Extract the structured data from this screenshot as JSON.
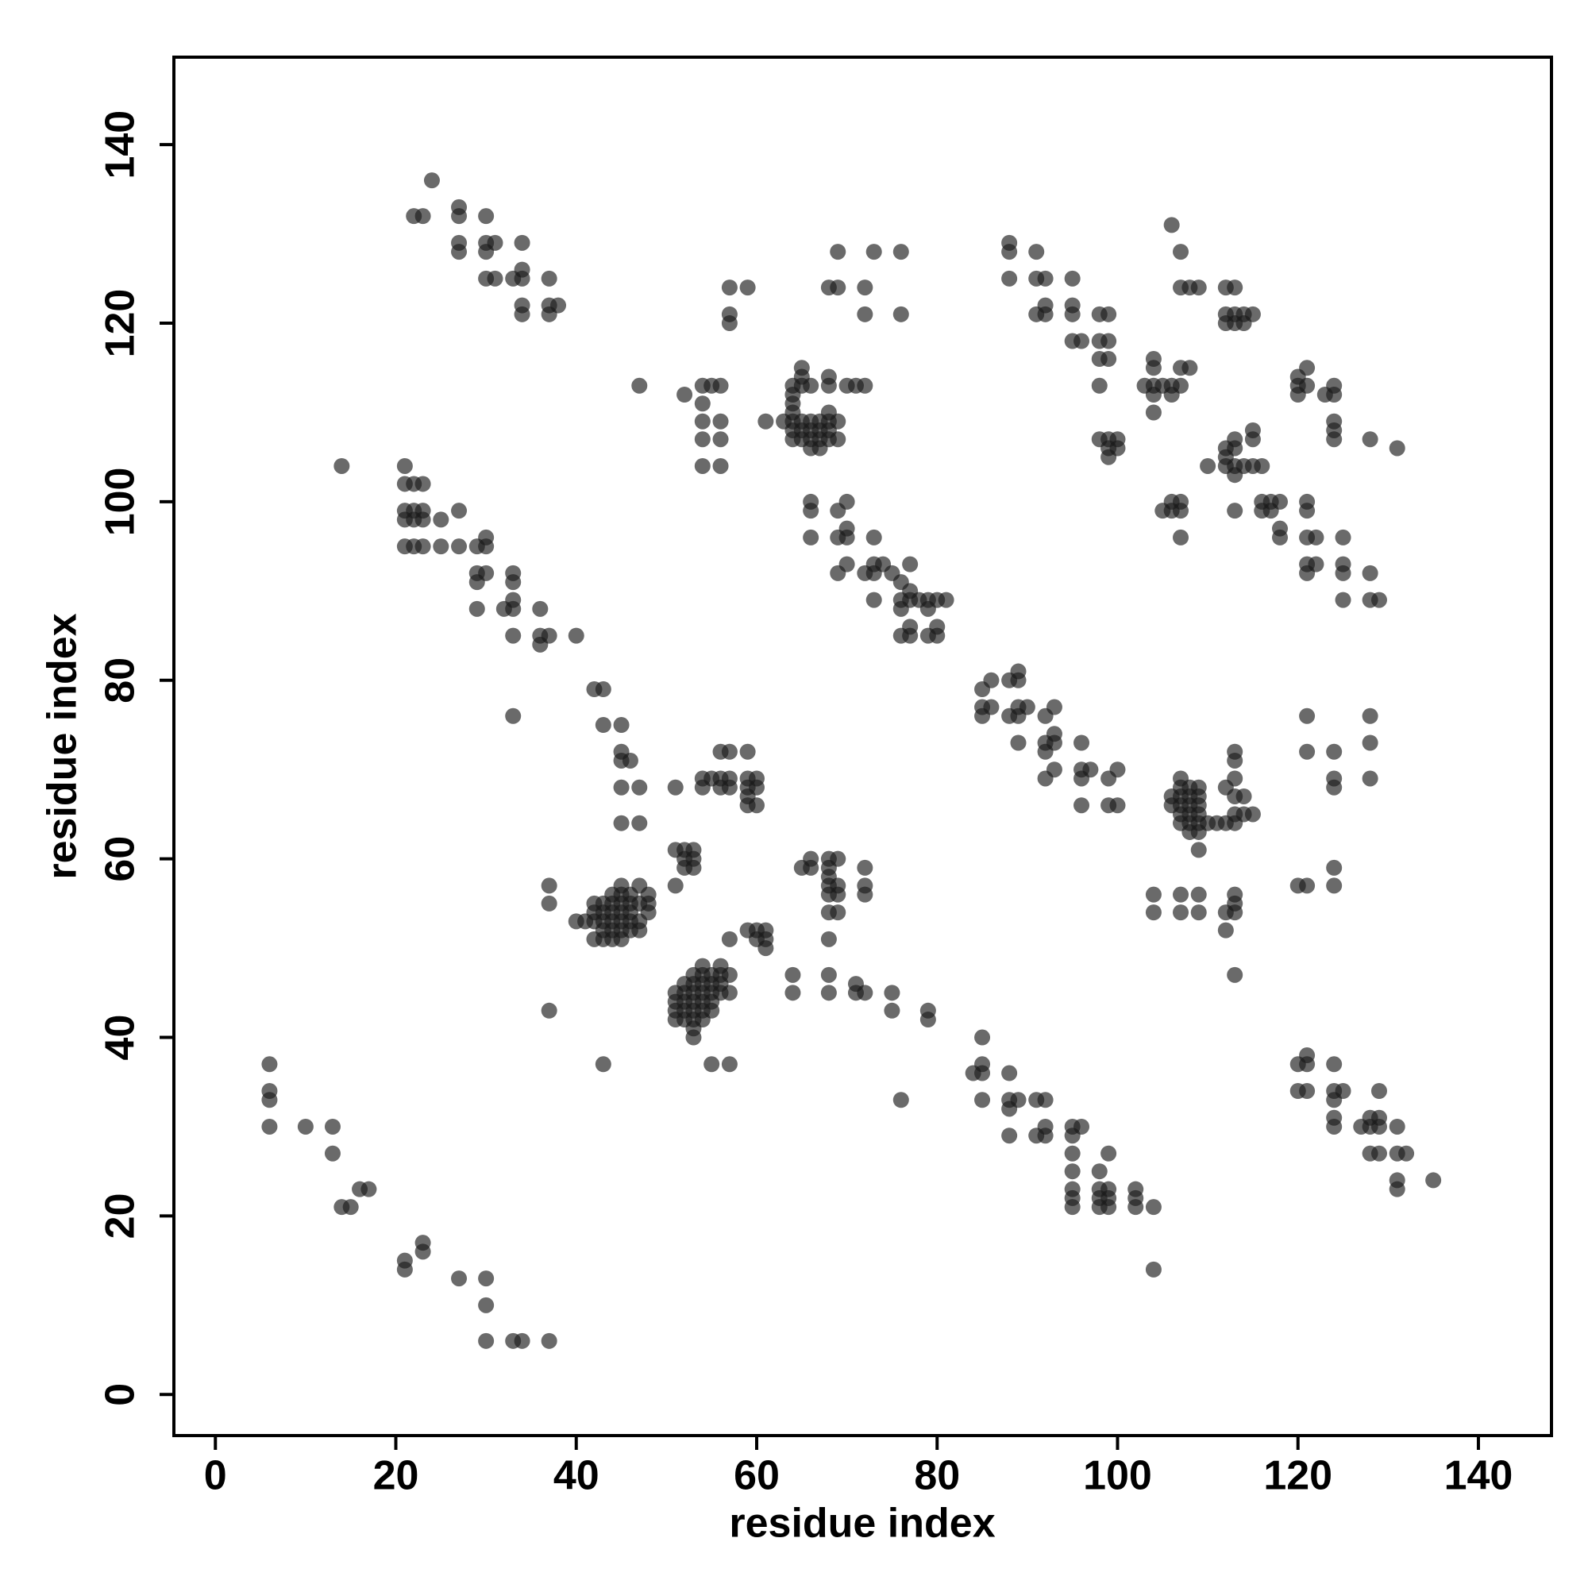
{
  "chart_data": {
    "type": "scatter",
    "xlabel": "residue index",
    "ylabel": "residue index",
    "color": "#1a1a1a",
    "xlim": [
      -4.6,
      148.1
    ],
    "ylim": [
      -4.6,
      149.8
    ],
    "xticks": [
      0,
      20,
      40,
      60,
      80,
      100,
      120,
      140
    ],
    "yticks": [
      0,
      20,
      40,
      60,
      80,
      100,
      120,
      140
    ],
    "x": [
      6,
      6,
      6,
      6,
      10,
      13,
      13,
      14,
      15,
      16,
      17,
      21,
      21,
      23,
      23,
      27,
      30,
      30,
      30,
      33,
      34,
      37,
      14,
      24,
      22,
      23,
      27,
      27,
      30,
      27,
      27,
      30,
      31,
      30,
      30,
      31,
      33,
      34,
      34,
      34,
      34,
      34,
      37,
      37,
      38,
      37,
      21,
      21,
      22,
      23,
      21,
      22,
      23,
      21,
      22,
      23,
      25,
      27,
      21,
      22,
      23,
      25,
      27,
      29,
      30,
      30,
      29,
      30,
      29,
      33,
      33,
      33,
      33,
      32,
      29,
      33,
      36,
      36,
      37,
      36,
      40,
      33,
      42,
      43,
      43,
      45,
      45,
      45,
      46,
      45,
      47,
      45,
      47,
      37,
      37,
      37,
      43,
      40,
      41,
      42,
      42,
      42,
      43,
      43,
      43,
      43,
      43,
      42,
      44,
      45,
      44,
      44,
      44,
      44,
      44,
      45,
      45,
      45,
      45,
      45,
      45,
      46,
      46,
      46,
      46,
      47,
      47,
      47,
      48,
      48,
      48,
      46,
      47,
      51,
      51,
      52,
      53,
      52,
      53,
      51,
      52,
      53,
      51,
      51,
      51,
      51,
      52,
      52,
      52,
      52,
      52,
      53,
      53,
      53,
      53,
      53,
      53,
      53,
      53,
      54,
      54,
      54,
      54,
      54,
      54,
      54,
      55,
      55,
      55,
      55,
      55,
      56,
      56,
      56,
      56,
      57,
      57,
      55,
      57,
      54,
      54,
      55,
      56,
      56,
      56,
      57,
      57,
      57,
      59,
      59,
      59,
      59,
      59,
      60,
      60,
      60,
      57,
      59,
      60,
      61,
      60,
      61,
      61,
      64,
      64,
      68,
      68,
      71,
      71,
      72,
      75,
      75,
      79,
      79,
      76,
      65,
      66,
      66,
      68,
      69,
      68,
      68,
      68,
      69,
      68,
      68,
      69,
      69,
      72,
      72,
      72,
      68,
      47,
      52,
      54,
      55,
      56,
      54,
      54,
      54,
      54,
      56,
      56,
      56,
      57,
      59,
      57,
      57,
      61,
      63,
      64,
      64,
      64,
      64,
      64,
      64,
      64,
      65,
      65,
      65,
      65,
      65,
      65,
      66,
      66,
      66,
      66,
      66,
      67,
      67,
      67,
      67,
      68,
      68,
      68,
      68,
      68,
      68,
      69,
      69,
      70,
      71,
      72,
      68,
      69,
      69,
      72,
      73,
      72,
      76,
      76,
      66,
      66,
      66,
      69,
      70,
      69,
      70,
      70,
      69,
      70,
      72,
      73,
      73,
      73,
      74,
      73,
      75,
      76,
      77,
      77,
      76,
      77,
      76,
      78,
      79,
      79,
      80,
      81,
      76,
      77,
      77,
      79,
      80,
      80,
      85,
      85,
      85,
      86,
      86,
      88,
      89,
      89,
      89,
      89,
      88,
      90,
      89,
      92,
      92,
      92,
      92,
      93,
      93,
      93,
      93,
      96,
      96,
      96,
      97,
      96,
      99,
      100,
      99,
      100,
      106,
      106,
      107,
      107,
      107,
      107,
      107,
      107,
      108,
      108,
      108,
      108,
      108,
      108,
      109,
      109,
      109,
      109,
      109,
      109,
      109,
      110,
      111,
      112,
      112,
      113,
      113,
      113,
      113,
      113,
      113,
      114,
      114,
      115,
      104,
      104,
      107,
      107,
      109,
      109,
      112,
      112,
      113,
      113,
      113,
      113,
      121,
      121,
      124,
      124,
      124,
      128,
      128,
      128,
      120,
      121,
      124,
      124,
      84,
      85,
      85,
      85,
      85,
      88,
      88,
      88,
      89,
      88,
      91,
      91,
      92,
      92,
      92,
      95,
      95,
      95,
      95,
      95,
      95,
      95,
      96,
      98,
      98,
      98,
      98,
      99,
      99,
      99,
      99,
      102,
      102,
      102,
      104,
      104,
      120,
      120,
      121,
      121,
      121,
      124,
      124,
      124,
      124,
      124,
      125,
      127,
      128,
      128,
      128,
      129,
      129,
      129,
      129,
      131,
      131,
      132,
      131,
      131,
      135,
      88,
      88,
      88,
      91,
      91,
      91,
      92,
      92,
      92,
      95,
      95,
      95,
      95,
      96,
      98,
      98,
      98,
      99,
      99,
      99,
      98,
      98,
      99,
      99,
      99,
      100,
      100,
      103,
      104,
      104,
      104,
      104,
      104,
      105,
      106,
      107,
      106,
      106,
      107,
      107,
      108,
      107,
      108,
      109,
      112,
      113,
      112,
      113,
      112,
      113,
      114,
      114,
      115,
      110,
      112,
      112,
      112,
      113,
      113,
      113,
      113,
      114,
      115,
      116,
      115,
      115,
      113,
      105,
      106,
      106,
      107,
      107,
      107,
      116,
      117,
      117,
      118,
      118,
      118,
      116,
      120,
      120,
      120,
      121,
      121,
      123,
      124,
      124,
      124,
      124,
      124,
      128,
      131,
      121,
      121,
      121,
      122,
      121,
      121,
      122,
      125,
      125,
      125,
      125,
      128,
      128,
      129
    ],
    "values": [
      37,
      34,
      33,
      30,
      30,
      30,
      27,
      21,
      21,
      23,
      23,
      15,
      14,
      17,
      16,
      13,
      13,
      10,
      6,
      6,
      6,
      6,
      104,
      136,
      132,
      132,
      133,
      132,
      132,
      129,
      128,
      129,
      129,
      128,
      125,
      125,
      125,
      125,
      129,
      126,
      122,
      121,
      125,
      122,
      122,
      121,
      104,
      102,
      102,
      102,
      99,
      99,
      99,
      98,
      98,
      98,
      98,
      99,
      95,
      95,
      95,
      95,
      95,
      95,
      96,
      95,
      92,
      92,
      91,
      92,
      91,
      89,
      88,
      88,
      88,
      85,
      88,
      85,
      85,
      84,
      85,
      76,
      79,
      79,
      75,
      75,
      72,
      71,
      71,
      68,
      68,
      64,
      64,
      57,
      55,
      43,
      37,
      53,
      53,
      53,
      54,
      55,
      55,
      54,
      53,
      52,
      51,
      51,
      51,
      51,
      52,
      53,
      54,
      55,
      56,
      57,
      56,
      55,
      54,
      53,
      52,
      56,
      55,
      54,
      53,
      57,
      55,
      53,
      56,
      55,
      54,
      52,
      52,
      68,
      61,
      61,
      61,
      60,
      60,
      57,
      59,
      59,
      45,
      44,
      43,
      42,
      46,
      45,
      44,
      43,
      42,
      47,
      46,
      45,
      44,
      43,
      42,
      41,
      40,
      48,
      47,
      46,
      45,
      44,
      43,
      42,
      47,
      46,
      45,
      44,
      43,
      48,
      47,
      46,
      45,
      47,
      45,
      37,
      37,
      69,
      68,
      69,
      72,
      69,
      68,
      72,
      69,
      68,
      72,
      69,
      68,
      67,
      66,
      69,
      68,
      66,
      51,
      52,
      52,
      52,
      51,
      51,
      50,
      47,
      45,
      47,
      45,
      46,
      45,
      45,
      45,
      43,
      43,
      42,
      33,
      59,
      60,
      59,
      60,
      60,
      59,
      58,
      57,
      57,
      56,
      54,
      54,
      56,
      59,
      57,
      56,
      51,
      113,
      112,
      113,
      113,
      113,
      111,
      109,
      107,
      104,
      109,
      107,
      104,
      124,
      124,
      121,
      120,
      109,
      109,
      113,
      112,
      111,
      110,
      109,
      108,
      107,
      115,
      114,
      113,
      109,
      108,
      107,
      113,
      109,
      108,
      107,
      106,
      109,
      108,
      107,
      106,
      114,
      113,
      110,
      109,
      108,
      107,
      107,
      109,
      113,
      113,
      113,
      124,
      124,
      128,
      124,
      128,
      121,
      128,
      121,
      100,
      99,
      96,
      99,
      100,
      96,
      96,
      97,
      92,
      93,
      92,
      96,
      93,
      92,
      93,
      89,
      92,
      91,
      93,
      90,
      89,
      89,
      88,
      89,
      88,
      89,
      89,
      89,
      85,
      86,
      85,
      85,
      86,
      85,
      79,
      77,
      76,
      80,
      77,
      80,
      81,
      80,
      77,
      76,
      76,
      77,
      73,
      76,
      73,
      72,
      69,
      77,
      74,
      73,
      70,
      73,
      70,
      69,
      70,
      66,
      69,
      70,
      66,
      66,
      67,
      66,
      69,
      68,
      67,
      66,
      65,
      64,
      68,
      67,
      66,
      65,
      64,
      63,
      68,
      67,
      66,
      65,
      64,
      63,
      61,
      64,
      64,
      68,
      64,
      72,
      71,
      69,
      67,
      65,
      64,
      67,
      65,
      65,
      56,
      54,
      56,
      54,
      56,
      54,
      54,
      52,
      56,
      55,
      54,
      47,
      76,
      72,
      72,
      69,
      68,
      76,
      73,
      69,
      57,
      57,
      59,
      57,
      36,
      40,
      37,
      36,
      33,
      36,
      33,
      32,
      33,
      29,
      33,
      29,
      33,
      30,
      29,
      30,
      29,
      27,
      25,
      23,
      22,
      21,
      30,
      25,
      23,
      22,
      21,
      27,
      23,
      22,
      21,
      23,
      22,
      21,
      21,
      14,
      37,
      34,
      38,
      37,
      34,
      37,
      34,
      33,
      31,
      30,
      34,
      30,
      31,
      30,
      27,
      34,
      31,
      30,
      27,
      30,
      27,
      27,
      24,
      23,
      24,
      129,
      128,
      125,
      128,
      125,
      121,
      122,
      121,
      125,
      125,
      122,
      121,
      118,
      118,
      121,
      118,
      116,
      121,
      118,
      116,
      113,
      107,
      107,
      106,
      105,
      107,
      106,
      113,
      116,
      115,
      113,
      112,
      110,
      113,
      131,
      128,
      113,
      112,
      115,
      113,
      115,
      124,
      124,
      124,
      124,
      124,
      121,
      121,
      120,
      120,
      121,
      120,
      121,
      104,
      106,
      105,
      104,
      107,
      106,
      104,
      103,
      104,
      104,
      104,
      108,
      107,
      99,
      99,
      99,
      100,
      100,
      99,
      96,
      100,
      100,
      99,
      100,
      97,
      96,
      99,
      114,
      113,
      112,
      115,
      113,
      112,
      113,
      112,
      109,
      108,
      107,
      107,
      106,
      100,
      99,
      96,
      96,
      93,
      92,
      93,
      96,
      93,
      92,
      89,
      92,
      89,
      89
    ]
  }
}
